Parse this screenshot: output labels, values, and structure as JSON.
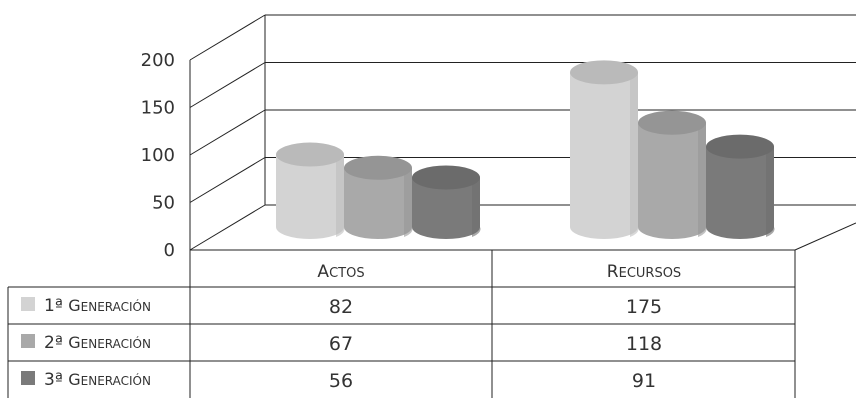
{
  "chart_data": {
    "type": "bar",
    "categories": [
      "Actos",
      "Recursos"
    ],
    "series": [
      {
        "name": "1ª Generación",
        "values": [
          82,
          175
        ],
        "color": "#d3d3d3"
      },
      {
        "name": "2ª Generación",
        "values": [
          67,
          118
        ],
        "color": "#a9a9a9"
      },
      {
        "name": "3ª Generación",
        "values": [
          56,
          91
        ],
        "color": "#7a7a7a"
      }
    ],
    "yticks": [
      0,
      50,
      100,
      150,
      200
    ],
    "ylim": [
      0,
      200
    ],
    "grid": true,
    "style": "3d-cylinder",
    "legend": "data-table-below"
  }
}
